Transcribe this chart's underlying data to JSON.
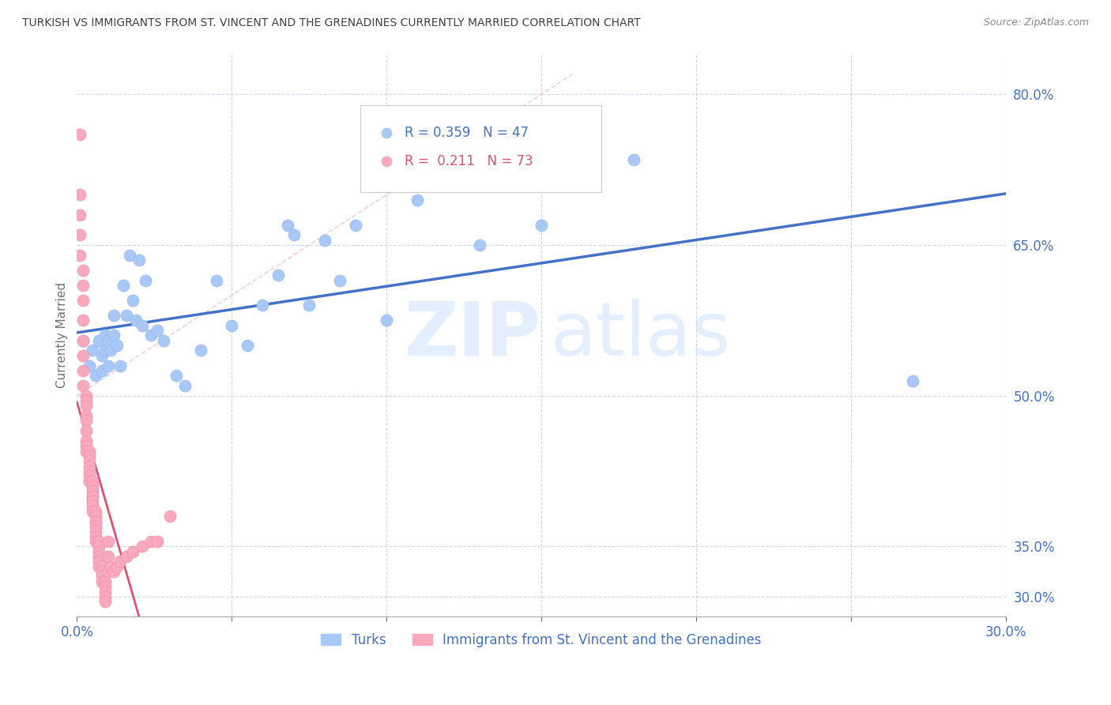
{
  "title": "TURKISH VS IMMIGRANTS FROM ST. VINCENT AND THE GRENADINES CURRENTLY MARRIED CORRELATION CHART",
  "source": "Source: ZipAtlas.com",
  "ylabel": "Currently Married",
  "xlim": [
    0.0,
    0.3
  ],
  "ylim": [
    0.28,
    0.84
  ],
  "yticks_right": [
    0.8,
    0.65,
    0.5,
    0.35,
    0.3
  ],
  "ytick_labels_right": [
    "80.0%",
    "65.0%",
    "50.0%",
    "35.0%",
    "30.0%"
  ],
  "blue_color": "#a8c8f8",
  "pink_color": "#f9a8be",
  "line_blue_color": "#4472c4",
  "line_pink_color": "#e05070",
  "axis_label_color": "#4472c4",
  "title_color": "#404040",
  "turks_x": [
    0.002,
    0.004,
    0.005,
    0.006,
    0.007,
    0.008,
    0.008,
    0.009,
    0.009,
    0.01,
    0.01,
    0.011,
    0.012,
    0.012,
    0.013,
    0.014,
    0.015,
    0.016,
    0.017,
    0.018,
    0.019,
    0.02,
    0.021,
    0.022,
    0.024,
    0.026,
    0.028,
    0.032,
    0.035,
    0.04,
    0.045,
    0.05,
    0.055,
    0.06,
    0.065,
    0.068,
    0.07,
    0.075,
    0.08,
    0.085,
    0.09,
    0.1,
    0.11,
    0.13,
    0.15,
    0.18,
    0.27
  ],
  "turks_y": [
    0.555,
    0.53,
    0.545,
    0.52,
    0.555,
    0.525,
    0.54,
    0.545,
    0.56,
    0.53,
    0.555,
    0.545,
    0.56,
    0.58,
    0.55,
    0.53,
    0.61,
    0.58,
    0.64,
    0.595,
    0.575,
    0.635,
    0.57,
    0.615,
    0.56,
    0.565,
    0.555,
    0.52,
    0.51,
    0.545,
    0.615,
    0.57,
    0.55,
    0.59,
    0.62,
    0.67,
    0.66,
    0.59,
    0.655,
    0.615,
    0.67,
    0.575,
    0.695,
    0.65,
    0.67,
    0.735,
    0.515
  ],
  "svg_x": [
    0.001,
    0.001,
    0.001,
    0.001,
    0.001,
    0.002,
    0.002,
    0.002,
    0.002,
    0.002,
    0.002,
    0.002,
    0.002,
    0.003,
    0.003,
    0.003,
    0.003,
    0.003,
    0.003,
    0.003,
    0.003,
    0.003,
    0.004,
    0.004,
    0.004,
    0.004,
    0.004,
    0.004,
    0.004,
    0.005,
    0.005,
    0.005,
    0.005,
    0.005,
    0.005,
    0.005,
    0.005,
    0.006,
    0.006,
    0.006,
    0.006,
    0.006,
    0.006,
    0.006,
    0.006,
    0.007,
    0.007,
    0.007,
    0.007,
    0.007,
    0.007,
    0.008,
    0.008,
    0.008,
    0.008,
    0.009,
    0.009,
    0.009,
    0.009,
    0.009,
    0.01,
    0.01,
    0.01,
    0.011,
    0.012,
    0.013,
    0.014,
    0.016,
    0.018,
    0.021,
    0.024,
    0.026,
    0.03
  ],
  "svg_y": [
    0.76,
    0.7,
    0.68,
    0.66,
    0.64,
    0.625,
    0.61,
    0.595,
    0.575,
    0.555,
    0.54,
    0.525,
    0.51,
    0.5,
    0.495,
    0.49,
    0.48,
    0.475,
    0.465,
    0.455,
    0.45,
    0.445,
    0.445,
    0.44,
    0.435,
    0.43,
    0.425,
    0.42,
    0.415,
    0.415,
    0.41,
    0.405,
    0.4,
    0.4,
    0.395,
    0.39,
    0.385,
    0.385,
    0.38,
    0.375,
    0.375,
    0.37,
    0.365,
    0.36,
    0.355,
    0.355,
    0.35,
    0.345,
    0.34,
    0.335,
    0.33,
    0.33,
    0.325,
    0.32,
    0.315,
    0.315,
    0.31,
    0.305,
    0.3,
    0.295,
    0.355,
    0.34,
    0.325,
    0.33,
    0.325,
    0.33,
    0.335,
    0.34,
    0.345,
    0.35,
    0.355,
    0.355,
    0.38
  ]
}
